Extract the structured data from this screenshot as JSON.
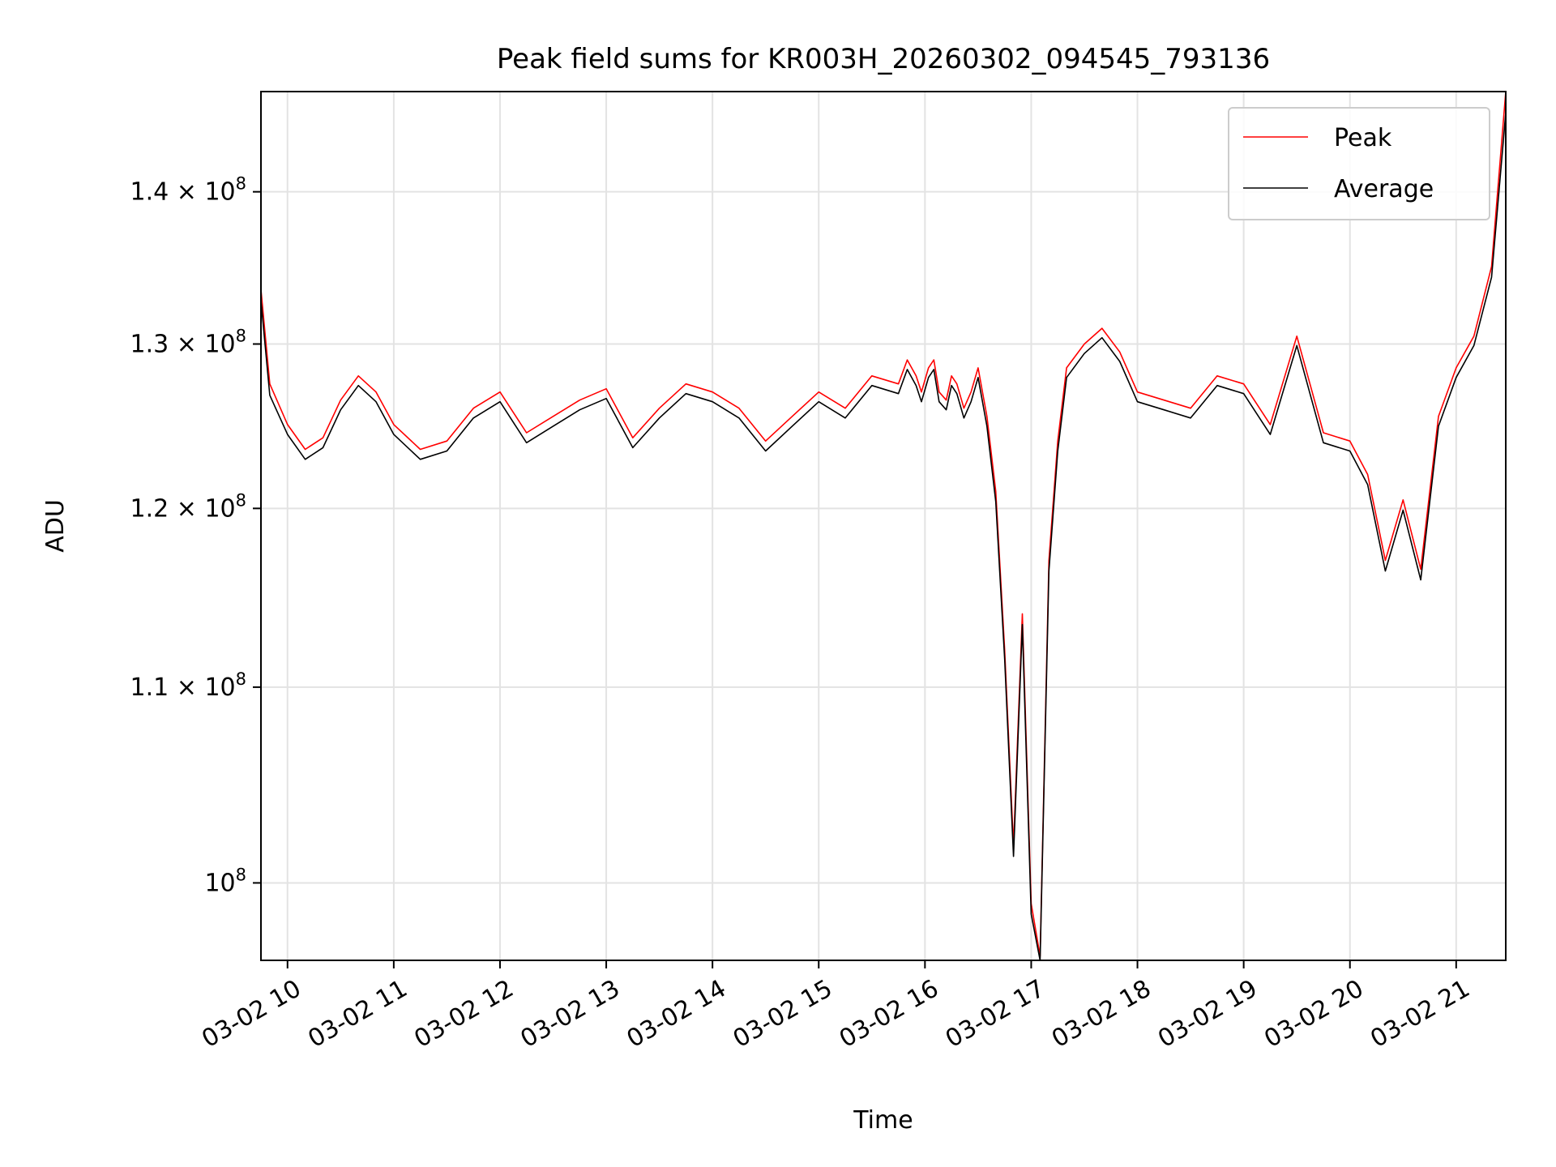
{
  "chart_data": {
    "type": "line",
    "title": "Peak field sums for KR003H_20260302_094545_793136",
    "xlabel": "Time",
    "ylabel": "ADU",
    "y_scale": "log",
    "ylim": [
      96300000,
      147000000
    ],
    "xlim": [
      "2026-03-02 09:45",
      "2026-03-02 21:28"
    ],
    "grid": true,
    "legend": "upper right",
    "x_ticks": [
      {
        "t": "2026-03-02 10:00",
        "label": "03-02 10"
      },
      {
        "t": "2026-03-02 11:00",
        "label": "03-02 11"
      },
      {
        "t": "2026-03-02 12:00",
        "label": "03-02 12"
      },
      {
        "t": "2026-03-02 13:00",
        "label": "03-02 13"
      },
      {
        "t": "2026-03-02 14:00",
        "label": "03-02 14"
      },
      {
        "t": "2026-03-02 15:00",
        "label": "03-02 15"
      },
      {
        "t": "2026-03-02 16:00",
        "label": "03-02 16"
      },
      {
        "t": "2026-03-02 17:00",
        "label": "03-02 17"
      },
      {
        "t": "2026-03-02 18:00",
        "label": "03-02 18"
      },
      {
        "t": "2026-03-02 19:00",
        "label": "03-02 19"
      },
      {
        "t": "2026-03-02 20:00",
        "label": "03-02 20"
      },
      {
        "t": "2026-03-02 21:00",
        "label": "03-02 21"
      }
    ],
    "y_ticks": [
      {
        "value": 100000000,
        "mantissa": "",
        "exponent": "8"
      },
      {
        "value": 110000000,
        "mantissa": "1.1",
        "exponent": "8"
      },
      {
        "value": 120000000,
        "mantissa": "1.2",
        "exponent": "8"
      },
      {
        "value": 130000000,
        "mantissa": "1.3",
        "exponent": "8"
      },
      {
        "value": 140000000,
        "mantissa": "1.4",
        "exponent": "8"
      }
    ],
    "series": [
      {
        "name": "Peak",
        "color": "#ff0000",
        "x": [
          "2026-03-02 09:45",
          "2026-03-02 09:50",
          "2026-03-02 10:00",
          "2026-03-02 10:10",
          "2026-03-02 10:20",
          "2026-03-02 10:30",
          "2026-03-02 10:40",
          "2026-03-02 10:50",
          "2026-03-02 11:00",
          "2026-03-02 11:15",
          "2026-03-02 11:30",
          "2026-03-02 11:45",
          "2026-03-02 12:00",
          "2026-03-02 12:15",
          "2026-03-02 12:30",
          "2026-03-02 12:45",
          "2026-03-02 13:00",
          "2026-03-02 13:15",
          "2026-03-02 13:30",
          "2026-03-02 13:45",
          "2026-03-02 14:00",
          "2026-03-02 14:15",
          "2026-03-02 14:30",
          "2026-03-02 14:45",
          "2026-03-02 15:00",
          "2026-03-02 15:15",
          "2026-03-02 15:30",
          "2026-03-02 15:45",
          "2026-03-02 15:50",
          "2026-03-02 15:55",
          "2026-03-02 15:58",
          "2026-03-02 16:02",
          "2026-03-02 16:05",
          "2026-03-02 16:08",
          "2026-03-02 16:12",
          "2026-03-02 16:15",
          "2026-03-02 16:18",
          "2026-03-02 16:22",
          "2026-03-02 16:26",
          "2026-03-02 16:30",
          "2026-03-02 16:35",
          "2026-03-02 16:40",
          "2026-03-02 16:45",
          "2026-03-02 16:50",
          "2026-03-02 16:55",
          "2026-03-02 17:00",
          "2026-03-02 17:05",
          "2026-03-02 17:10",
          "2026-03-02 17:15",
          "2026-03-02 17:20",
          "2026-03-02 17:30",
          "2026-03-02 17:40",
          "2026-03-02 17:50",
          "2026-03-02 18:00",
          "2026-03-02 18:15",
          "2026-03-02 18:30",
          "2026-03-02 18:45",
          "2026-03-02 19:00",
          "2026-03-02 19:15",
          "2026-03-02 19:30",
          "2026-03-02 19:45",
          "2026-03-02 20:00",
          "2026-03-02 20:10",
          "2026-03-02 20:20",
          "2026-03-02 20:30",
          "2026-03-02 20:40",
          "2026-03-02 20:50",
          "2026-03-02 21:00",
          "2026-03-02 21:10",
          "2026-03-02 21:20",
          "2026-03-02 21:28"
        ],
        "values": [
          133500000,
          127500000,
          125000000,
          123500000,
          124200000,
          126500000,
          128000000,
          127000000,
          125000000,
          123500000,
          124000000,
          126000000,
          127000000,
          124500000,
          125500000,
          126500000,
          127200000,
          124200000,
          126000000,
          127500000,
          127000000,
          126000000,
          124000000,
          125500000,
          127000000,
          126000000,
          128000000,
          127500000,
          129000000,
          128000000,
          127000000,
          128500000,
          129000000,
          127000000,
          126500000,
          128000000,
          127500000,
          126000000,
          127000000,
          128500000,
          125500000,
          121000000,
          112000000,
          101800000,
          114000000,
          99000000,
          96500000,
          117000000,
          124000000,
          128500000,
          130000000,
          131000000,
          129500000,
          127000000,
          126500000,
          126000000,
          128000000,
          127500000,
          125000000,
          130500000,
          124500000,
          124000000,
          122000000,
          117000000,
          120500000,
          116500000,
          125500000,
          128500000,
          130500000,
          135000000,
          147000000
        ]
      },
      {
        "name": "Average",
        "color": "#000000",
        "x": [
          "2026-03-02 09:45",
          "2026-03-02 09:50",
          "2026-03-02 10:00",
          "2026-03-02 10:10",
          "2026-03-02 10:20",
          "2026-03-02 10:30",
          "2026-03-02 10:40",
          "2026-03-02 10:50",
          "2026-03-02 11:00",
          "2026-03-02 11:15",
          "2026-03-02 11:30",
          "2026-03-02 11:45",
          "2026-03-02 12:00",
          "2026-03-02 12:15",
          "2026-03-02 12:30",
          "2026-03-02 12:45",
          "2026-03-02 13:00",
          "2026-03-02 13:15",
          "2026-03-02 13:30",
          "2026-03-02 13:45",
          "2026-03-02 14:00",
          "2026-03-02 14:15",
          "2026-03-02 14:30",
          "2026-03-02 14:45",
          "2026-03-02 15:00",
          "2026-03-02 15:15",
          "2026-03-02 15:30",
          "2026-03-02 15:45",
          "2026-03-02 15:50",
          "2026-03-02 15:55",
          "2026-03-02 15:58",
          "2026-03-02 16:02",
          "2026-03-02 16:05",
          "2026-03-02 16:08",
          "2026-03-02 16:12",
          "2026-03-02 16:15",
          "2026-03-02 16:18",
          "2026-03-02 16:22",
          "2026-03-02 16:26",
          "2026-03-02 16:30",
          "2026-03-02 16:35",
          "2026-03-02 16:40",
          "2026-03-02 16:45",
          "2026-03-02 16:50",
          "2026-03-02 16:55",
          "2026-03-02 17:00",
          "2026-03-02 17:05",
          "2026-03-02 17:10",
          "2026-03-02 17:15",
          "2026-03-02 17:20",
          "2026-03-02 17:30",
          "2026-03-02 17:40",
          "2026-03-02 17:50",
          "2026-03-02 18:00",
          "2026-03-02 18:15",
          "2026-03-02 18:30",
          "2026-03-02 18:45",
          "2026-03-02 19:00",
          "2026-03-02 19:15",
          "2026-03-02 19:30",
          "2026-03-02 19:45",
          "2026-03-02 20:00",
          "2026-03-02 20:10",
          "2026-03-02 20:20",
          "2026-03-02 20:30",
          "2026-03-02 20:40",
          "2026-03-02 20:50",
          "2026-03-02 21:00",
          "2026-03-02 21:10",
          "2026-03-02 21:20",
          "2026-03-02 21:28"
        ],
        "values": [
          132800000,
          126800000,
          124400000,
          122900000,
          123600000,
          125900000,
          127400000,
          126400000,
          124400000,
          122900000,
          123400000,
          125400000,
          126400000,
          123900000,
          124900000,
          125900000,
          126600000,
          123600000,
          125400000,
          126900000,
          126400000,
          125400000,
          123400000,
          124900000,
          126400000,
          125400000,
          127400000,
          126900000,
          128400000,
          127400000,
          126400000,
          127900000,
          128400000,
          126400000,
          125900000,
          127400000,
          126900000,
          125400000,
          126400000,
          127900000,
          124900000,
          120400000,
          111500000,
          101300000,
          113400000,
          98500000,
          96300000,
          116400000,
          123400000,
          127900000,
          129400000,
          130400000,
          128900000,
          126400000,
          125900000,
          125400000,
          127400000,
          126900000,
          124400000,
          129900000,
          123900000,
          123400000,
          121400000,
          116400000,
          119900000,
          115900000,
          124900000,
          127900000,
          129900000,
          134300000,
          145500000
        ]
      }
    ]
  }
}
